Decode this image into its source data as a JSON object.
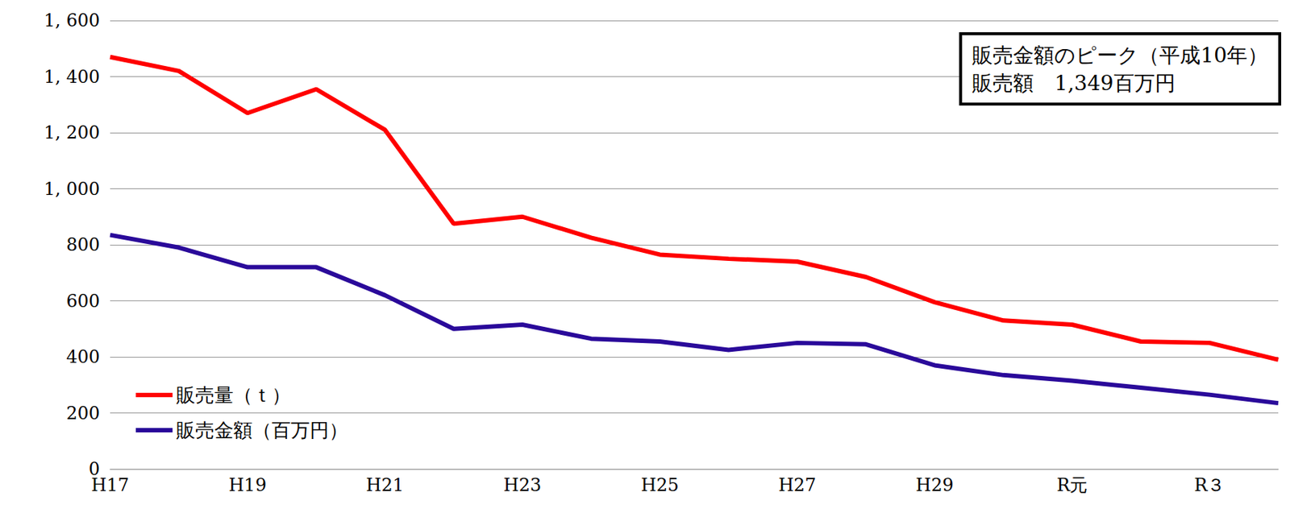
{
  "chart_data": {
    "type": "line",
    "categories": [
      "H17",
      null,
      "H19",
      null,
      "H21",
      null,
      "H23",
      null,
      "H25",
      null,
      "H27",
      null,
      "H29",
      null,
      "R元",
      null,
      "R３",
      null
    ],
    "series": [
      {
        "name": "販売量（ｔ）",
        "color": "#ff0000",
        "values": [
          1470,
          1420,
          1270,
          1355,
          1210,
          875,
          900,
          825,
          765,
          750,
          740,
          685,
          595,
          530,
          515,
          455,
          450,
          390
        ]
      },
      {
        "name": "販売金額（百万円）",
        "color": "#2a0a9a",
        "values": [
          835,
          790,
          720,
          720,
          620,
          500,
          515,
          465,
          455,
          425,
          450,
          445,
          370,
          335,
          315,
          290,
          265,
          235
        ]
      }
    ],
    "ylim": [
      0,
      1600
    ],
    "yticks": [
      0,
      200,
      400,
      600,
      800,
      {
        "value": 1000,
        "label": "1, 000"
      },
      {
        "value": 1200,
        "label": "1, 200"
      },
      {
        "value": 1400,
        "label": "1, 400"
      },
      {
        "value": 1600,
        "label": "1, 600"
      }
    ],
    "annotation": [
      "販売金額のピーク（平成10年）",
      "販売額　1,349百万円"
    ],
    "grid": true,
    "legend": "lower left"
  }
}
